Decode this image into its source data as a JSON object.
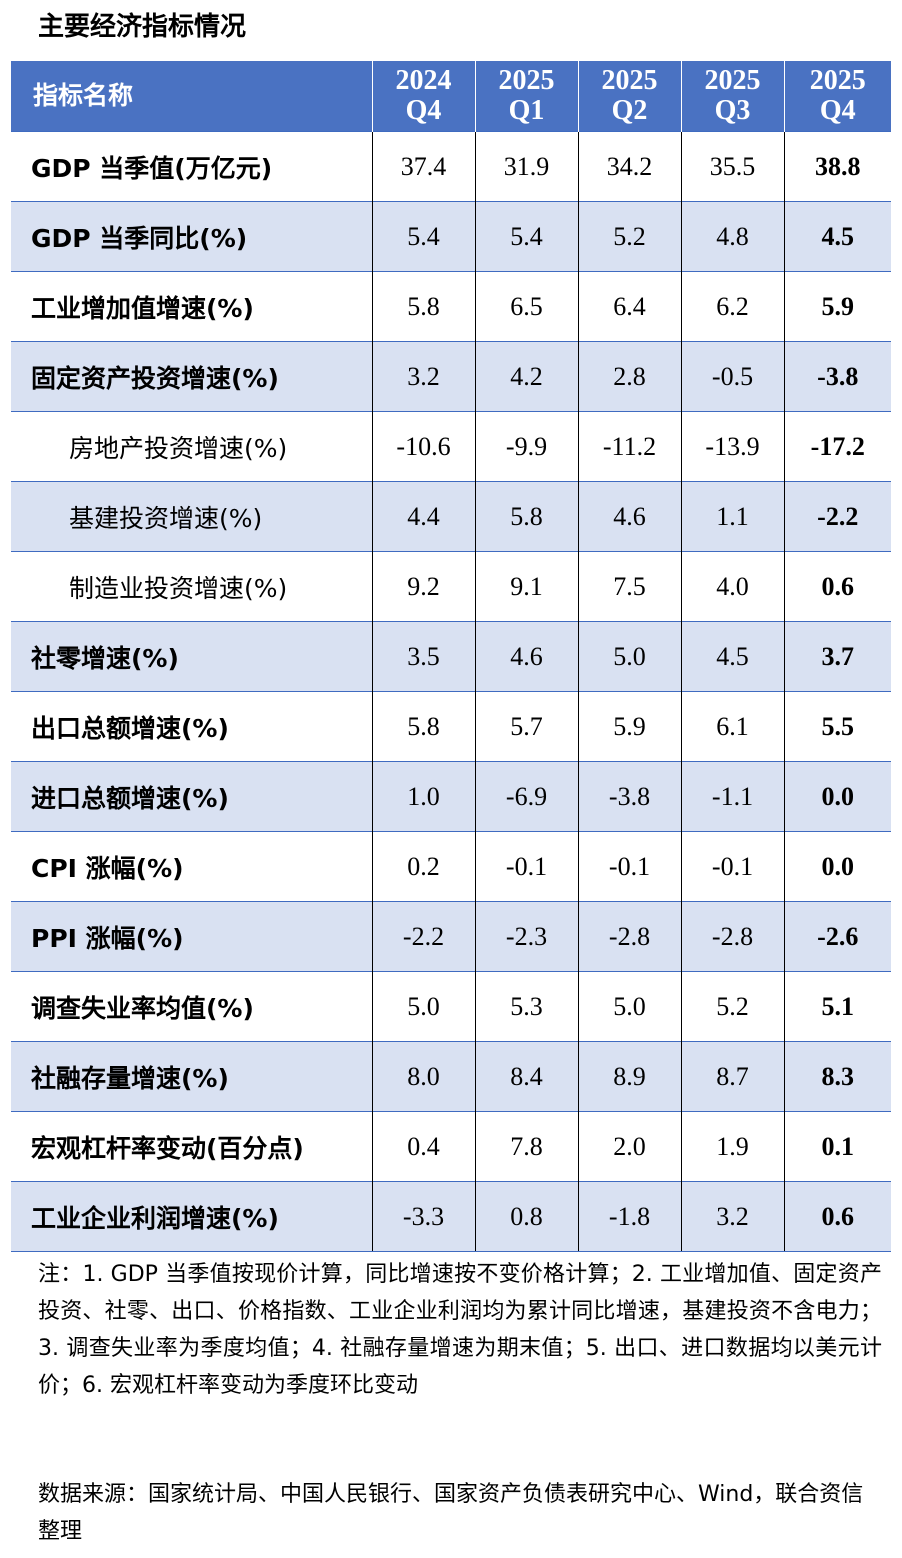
{
  "title": "主要经济指标情况",
  "header": {
    "name_label": "指标名称",
    "columns": [
      {
        "year": "2024",
        "quarter": "Q4"
      },
      {
        "year": "2025",
        "quarter": "Q1"
      },
      {
        "year": "2025",
        "quarter": "Q2"
      },
      {
        "year": "2025",
        "quarter": "Q3"
      },
      {
        "year": "2025",
        "quarter": "Q4"
      }
    ]
  },
  "rows": [
    {
      "name": "GDP 当季值(万亿元)",
      "values": [
        "37.4",
        "31.9",
        "34.2",
        "35.5",
        "38.8"
      ]
    },
    {
      "name": "GDP 当季同比(%)",
      "values": [
        "5.4",
        "5.4",
        "5.2",
        "4.8",
        "4.5"
      ]
    },
    {
      "name": "工业增加值增速(%)",
      "values": [
        "5.8",
        "6.5",
        "6.4",
        "6.2",
        "5.9"
      ]
    },
    {
      "name": "固定资产投资增速(%)",
      "values": [
        "3.2",
        "4.2",
        "2.8",
        "-0.5",
        "-3.8"
      ]
    },
    {
      "name": "房地产投资增速(%)",
      "values": [
        "-10.6",
        "-9.9",
        "-11.2",
        "-13.9",
        "-17.2"
      ]
    },
    {
      "name": "基建投资增速(%)",
      "values": [
        "4.4",
        "5.8",
        "4.6",
        "1.1",
        "-2.2"
      ]
    },
    {
      "name": "制造业投资增速(%)",
      "values": [
        "9.2",
        "9.1",
        "7.5",
        "4.0",
        "0.6"
      ]
    },
    {
      "name": "社零增速(%)",
      "values": [
        "3.5",
        "4.6",
        "5.0",
        "4.5",
        "3.7"
      ]
    },
    {
      "name": "出口总额增速(%)",
      "values": [
        "5.8",
        "5.7",
        "5.9",
        "6.1",
        "5.5"
      ]
    },
    {
      "name": "进口总额增速(%)",
      "values": [
        "1.0",
        "-6.9",
        "-3.8",
        "-1.1",
        "0.0"
      ]
    },
    {
      "name": "CPI 涨幅(%)",
      "values": [
        "0.2",
        "-0.1",
        "-0.1",
        "-0.1",
        "0.0"
      ]
    },
    {
      "name": "PPI 涨幅(%)",
      "values": [
        "-2.2",
        "-2.3",
        "-2.8",
        "-2.8",
        "-2.6"
      ]
    },
    {
      "name": "调查失业率均值(%)",
      "values": [
        "5.0",
        "5.3",
        "5.0",
        "5.2",
        "5.1"
      ]
    },
    {
      "name": "社融存量增速(%)",
      "values": [
        "8.0",
        "8.4",
        "8.9",
        "8.7",
        "8.3"
      ]
    },
    {
      "name": "宏观杠杆率变动(百分点)",
      "values": [
        "0.4",
        "7.8",
        "2.0",
        "1.9",
        "0.1"
      ]
    },
    {
      "name": "工业企业利润增速(%)",
      "values": [
        "-3.3",
        "0.8",
        "-1.8",
        "3.2",
        "0.6"
      ]
    }
  ],
  "note": "注：1. GDP 当季值按现价计算，同比增速按不变价格计算；2. 工业增加值、固定资产投资、社零、出口、价格指数、工业企业利润均为累计同比增速，基建投资不含电力；3. 调查失业率为季度均值；4. 社融存量增速为期末值；5. 出口、进口数据均以美元计价；6. 宏观杠杆率变动为季度环比变动",
  "source": "数据来源：国家统计局、中国人民银行、国家资产负债表研究中心、Wind，联合资信整理"
}
